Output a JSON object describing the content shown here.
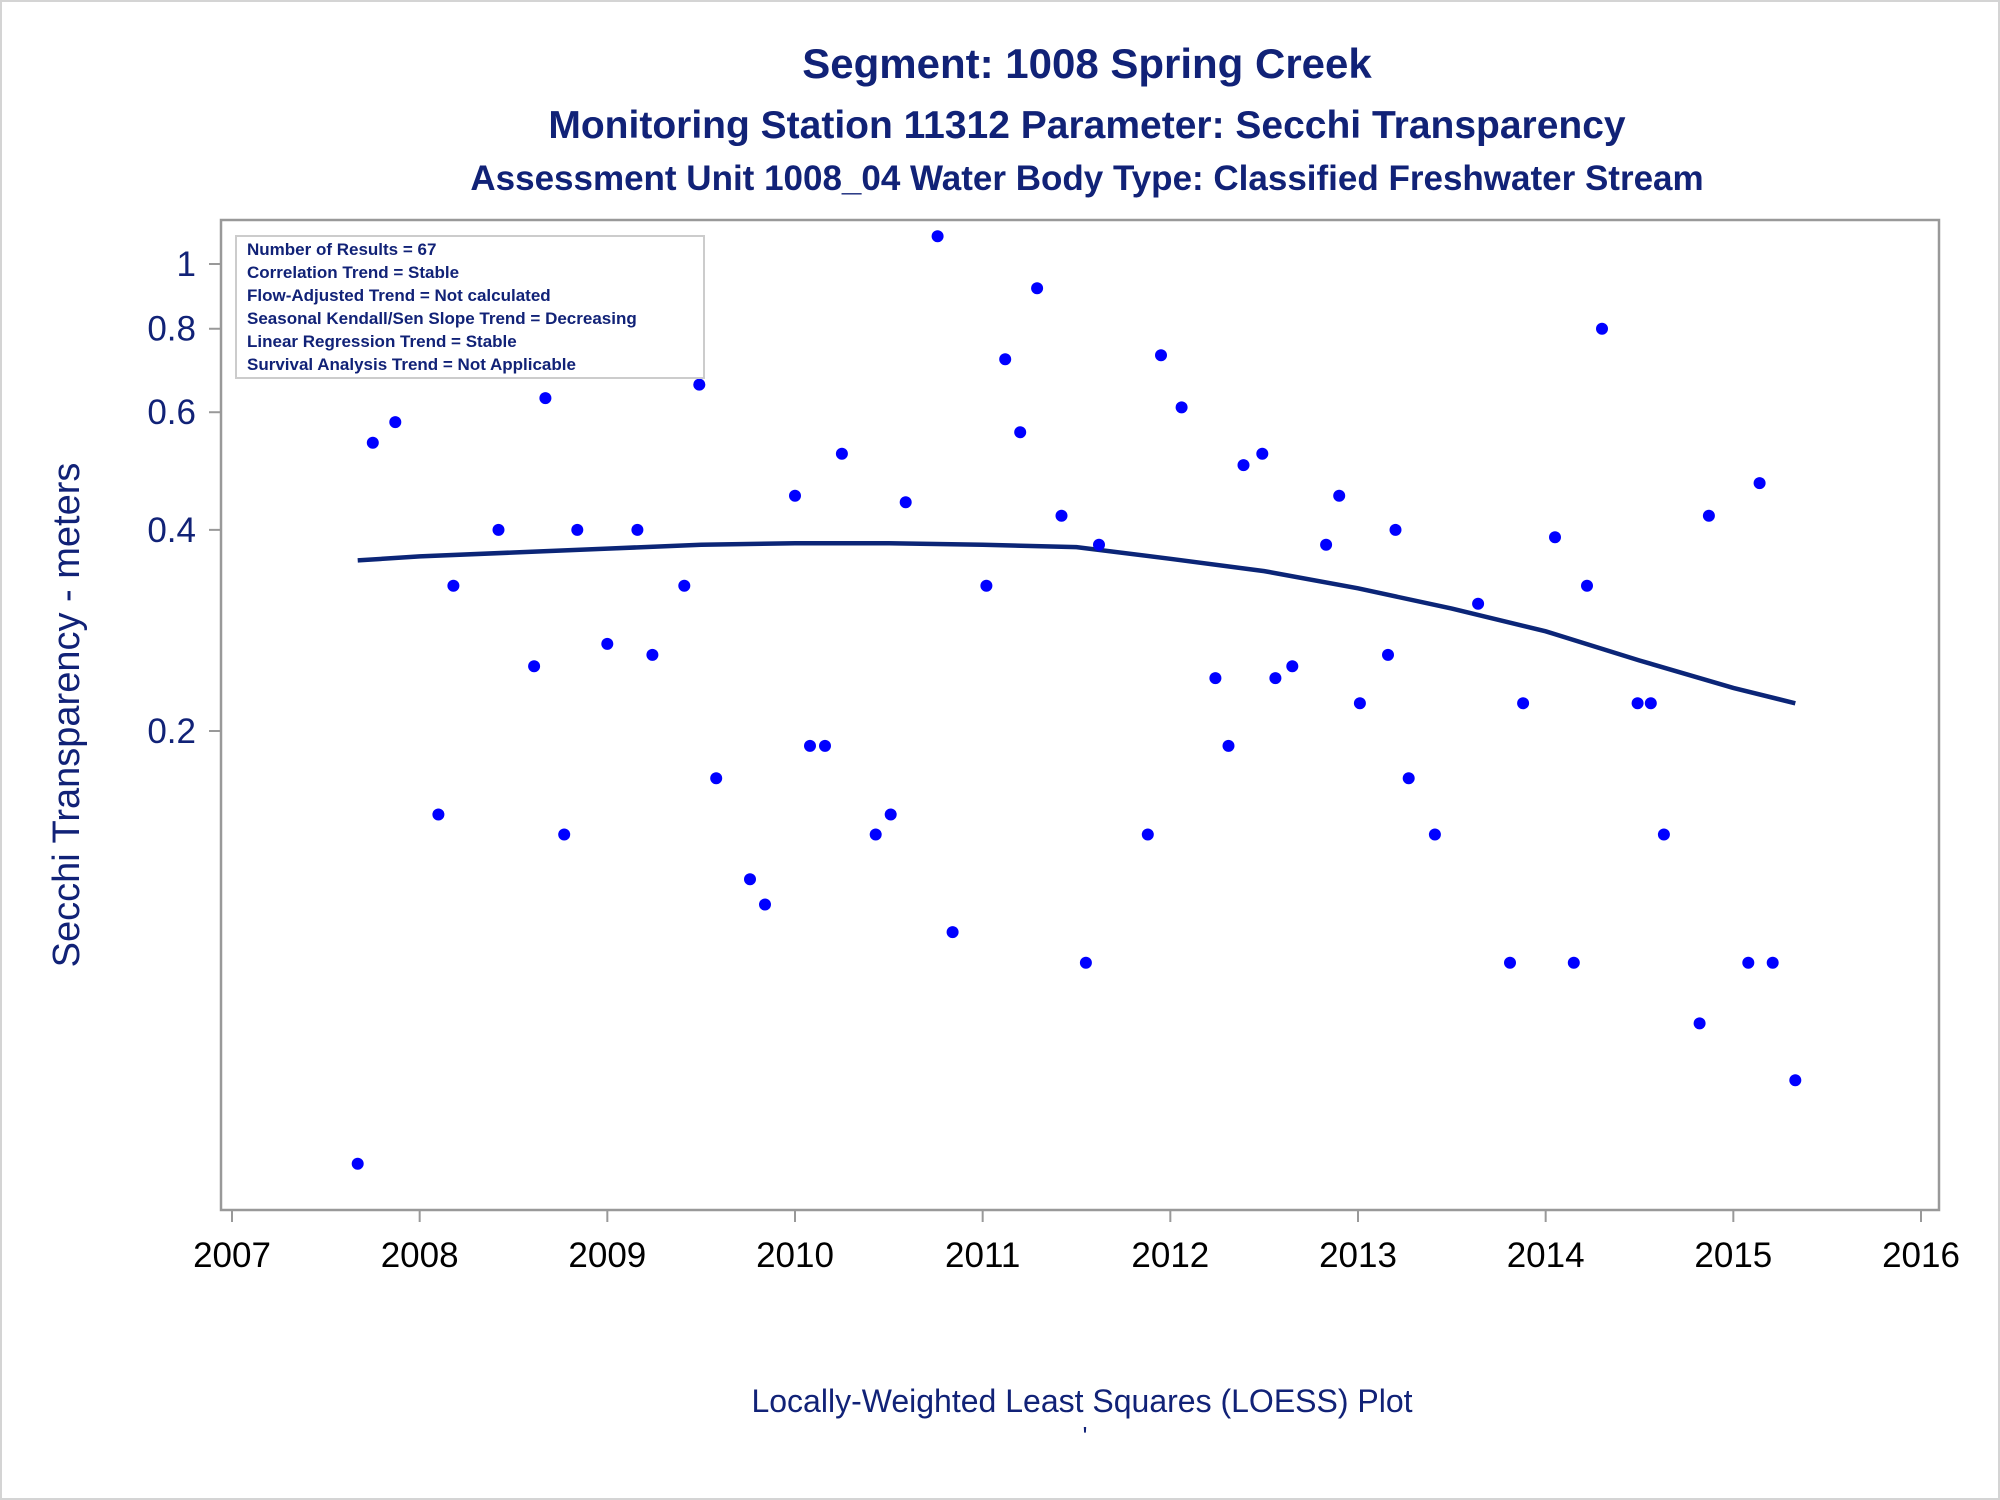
{
  "chart_data": {
    "type": "scatter",
    "title": "Segment: 1008  Spring Creek",
    "subtitle": "Monitoring Station 11312 Parameter: Secchi Transparency",
    "subtitle2": "Assessment Unit 1008_04   Water Body Type: Classified Freshwater Stream",
    "ylabel": "Secchi Transparency - meters",
    "xlabel": "Locally-Weighted Least Squares (LOESS) Plot",
    "footnote": "'",
    "y_scale": "log",
    "xlim": [
      2007,
      2016
    ],
    "ylim": [
      0.045,
      1.1
    ],
    "x_ticks": [
      "2007",
      "2008",
      "2009",
      "2010",
      "2011",
      "2012",
      "2013",
      "2014",
      "2015",
      "2016"
    ],
    "y_ticks": [
      {
        "value": 0.2,
        "label": "0.2"
      },
      {
        "value": 0.4,
        "label": "0.4"
      },
      {
        "value": 0.6,
        "label": "0.6"
      },
      {
        "value": 0.8,
        "label": "0.8"
      },
      {
        "value": 1,
        "label": "1"
      }
    ],
    "stats_box": [
      "Number of Results = 67",
      "Correlation Trend = Stable",
      "Flow-Adjusted Trend = Not calculated",
      "Seasonal Kendall/Sen Slope Trend = Decreasing",
      "Linear Regression Trend = Stable",
      "Survival Analysis Trend = Not Applicable"
    ],
    "colors": {
      "points": "#0000ff",
      "loess": "#0b2577",
      "text": "#112277",
      "axis": "#999999"
    },
    "series": [
      {
        "kind": "points",
        "points": [
          [
            2007.67,
            0.045
          ],
          [
            2007.75,
            0.54
          ],
          [
            2007.87,
            0.58
          ],
          [
            2008.0,
            0.7
          ],
          [
            2008.1,
            0.15
          ],
          [
            2008.18,
            0.33
          ],
          [
            2008.42,
            0.4
          ],
          [
            2008.61,
            0.25
          ],
          [
            2008.67,
            0.63
          ],
          [
            2008.77,
            0.14
          ],
          [
            2008.84,
            0.4
          ],
          [
            2009.0,
            0.27
          ],
          [
            2009.16,
            0.4
          ],
          [
            2009.24,
            0.26
          ],
          [
            2009.41,
            0.33
          ],
          [
            2009.49,
            0.66
          ],
          [
            2009.58,
            0.17
          ],
          [
            2009.76,
            0.12
          ],
          [
            2009.84,
            0.11
          ],
          [
            2010.0,
            0.45
          ],
          [
            2010.08,
            0.19
          ],
          [
            2010.16,
            0.19
          ],
          [
            2010.25,
            0.52
          ],
          [
            2010.43,
            0.14
          ],
          [
            2010.51,
            0.15
          ],
          [
            2010.59,
            0.44
          ],
          [
            2010.76,
            1.1
          ],
          [
            2010.84,
            0.1
          ],
          [
            2011.02,
            0.33
          ],
          [
            2011.12,
            0.72
          ],
          [
            2011.2,
            0.56
          ],
          [
            2011.29,
            0.92
          ],
          [
            2011.42,
            0.42
          ],
          [
            2011.55,
            0.09
          ],
          [
            2011.62,
            0.38
          ],
          [
            2011.88,
            0.14
          ],
          [
            2011.95,
            0.73
          ],
          [
            2012.06,
            0.61
          ],
          [
            2012.24,
            0.24
          ],
          [
            2012.31,
            0.19
          ],
          [
            2012.39,
            0.5
          ],
          [
            2012.49,
            0.52
          ],
          [
            2012.56,
            0.24
          ],
          [
            2012.65,
            0.25
          ],
          [
            2012.83,
            0.38
          ],
          [
            2012.9,
            0.45
          ],
          [
            2013.01,
            0.22
          ],
          [
            2013.16,
            0.26
          ],
          [
            2013.2,
            0.4
          ],
          [
            2013.27,
            0.17
          ],
          [
            2013.41,
            0.14
          ],
          [
            2013.64,
            0.31
          ],
          [
            2013.81,
            0.09
          ],
          [
            2013.88,
            0.22
          ],
          [
            2014.05,
            0.39
          ],
          [
            2014.15,
            0.09
          ],
          [
            2014.22,
            0.33
          ],
          [
            2014.3,
            0.8
          ],
          [
            2014.49,
            0.22
          ],
          [
            2014.56,
            0.22
          ],
          [
            2014.63,
            0.14
          ],
          [
            2014.82,
            0.073
          ],
          [
            2014.87,
            0.42
          ],
          [
            2015.08,
            0.09
          ],
          [
            2015.14,
            0.47
          ],
          [
            2015.21,
            0.09
          ],
          [
            2015.33,
            0.06
          ]
        ]
      },
      {
        "kind": "line",
        "points": [
          [
            2007.67,
            0.36
          ],
          [
            2008.0,
            0.365
          ],
          [
            2008.5,
            0.37
          ],
          [
            2009.0,
            0.375
          ],
          [
            2009.5,
            0.38
          ],
          [
            2010.0,
            0.382
          ],
          [
            2010.5,
            0.382
          ],
          [
            2011.0,
            0.38
          ],
          [
            2011.5,
            0.377
          ],
          [
            2012.0,
            0.362
          ],
          [
            2012.5,
            0.347
          ],
          [
            2013.0,
            0.327
          ],
          [
            2013.5,
            0.305
          ],
          [
            2014.0,
            0.282
          ],
          [
            2014.5,
            0.255
          ],
          [
            2015.0,
            0.232
          ],
          [
            2015.33,
            0.22
          ]
        ]
      }
    ]
  }
}
